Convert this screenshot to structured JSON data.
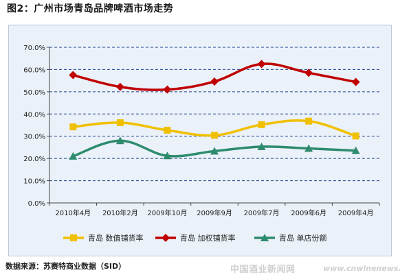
{
  "title": "图2：广州市场青岛品牌啤酒市场走势",
  "source": "数据来源：苏赛特商业数据（SID）",
  "watermark": "中国酒业新闻网",
  "watermark_url": "www.cnwinenews.com",
  "chart_data": {
    "type": "line",
    "title": "",
    "xlabel": "",
    "ylabel": "",
    "categories": [
      "2010年4月",
      "2010年2月",
      "2009年10月",
      "2009年9月",
      "2009年7月",
      "2009年6月",
      "2009年4月"
    ],
    "ylim": [
      0,
      70
    ],
    "yticks": [
      0,
      10,
      20,
      30,
      40,
      50,
      60,
      70
    ],
    "ytick_labels": [
      "0.0%",
      "10.0%",
      "20.0%",
      "30.0%",
      "40.0%",
      "50.0%",
      "60.0%",
      "70.0%"
    ],
    "grid": true,
    "legend_position": "bottom",
    "series": [
      {
        "name": "青岛 数值铺货率",
        "color": "#f0c000",
        "marker": "square",
        "values": [
          34.2,
          36.1,
          32.7,
          30.4,
          35.2,
          36.8,
          30.1
        ]
      },
      {
        "name": "青岛 加权铺货率",
        "color": "#c00000",
        "marker": "diamond",
        "values": [
          57.5,
          52.2,
          51.0,
          54.6,
          62.5,
          58.5,
          54.4
        ]
      },
      {
        "name": "青岛 单店份额",
        "color": "#2e8b6e",
        "marker": "triangle",
        "values": [
          21.0,
          28.0,
          21.2,
          23.3,
          25.3,
          24.5,
          23.5
        ]
      }
    ]
  }
}
